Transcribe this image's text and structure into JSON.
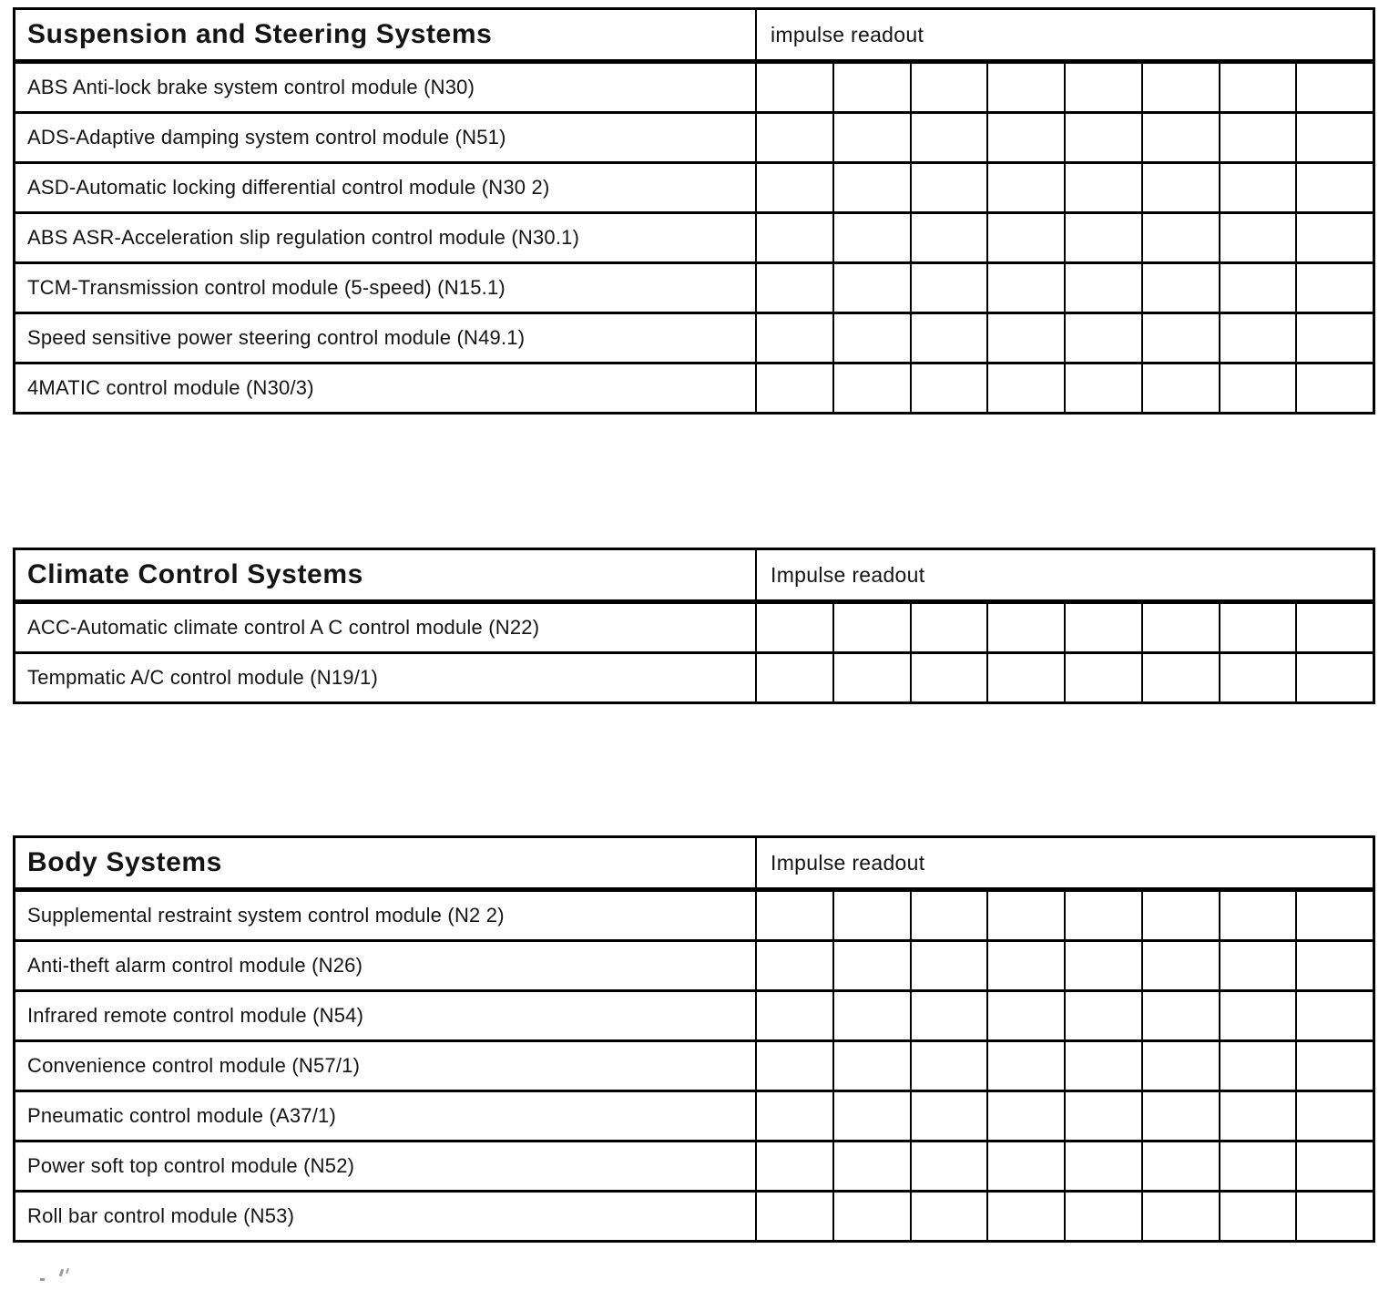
{
  "colors": {
    "ink": "#141414",
    "paper": "#ffffff",
    "border": "#000000"
  },
  "tables": [
    {
      "title": "Suspension and Steering Systems",
      "readout_label": "impulse readout",
      "readout_columns": 8,
      "rows": [
        "ABS Anti-lock brake system control module (N30)",
        "ADS-Adaptive damping system control module (N51)",
        "ASD-Automatic locking differential control module (N30 2)",
        "ABS ASR-Acceleration slip regulation control module (N30.1)",
        "TCM-Transmission control module (5-speed) (N15.1)",
        "Speed sensitive power steering control module (N49.1)",
        "4MATIC control module (N30/3)"
      ]
    },
    {
      "title": "Climate Control Systems",
      "readout_label": "Impulse readout",
      "readout_columns": 8,
      "rows": [
        "ACC-Automatic climate control A C control module (N22)",
        "Tempmatic A/C control module (N19/1)"
      ]
    },
    {
      "title": "Body Systems",
      "readout_label": "Impulse readout",
      "readout_columns": 8,
      "rows": [
        "Supplemental restraint system control module (N2 2)",
        "Anti-theft alarm control module (N26)",
        "Infrared remote control module (N54)",
        "Convenience control module (N57/1)",
        "Pneumatic control module (A37/1)",
        "Power soft top control module (N52)",
        "Roll bar control module (N53)"
      ]
    }
  ]
}
